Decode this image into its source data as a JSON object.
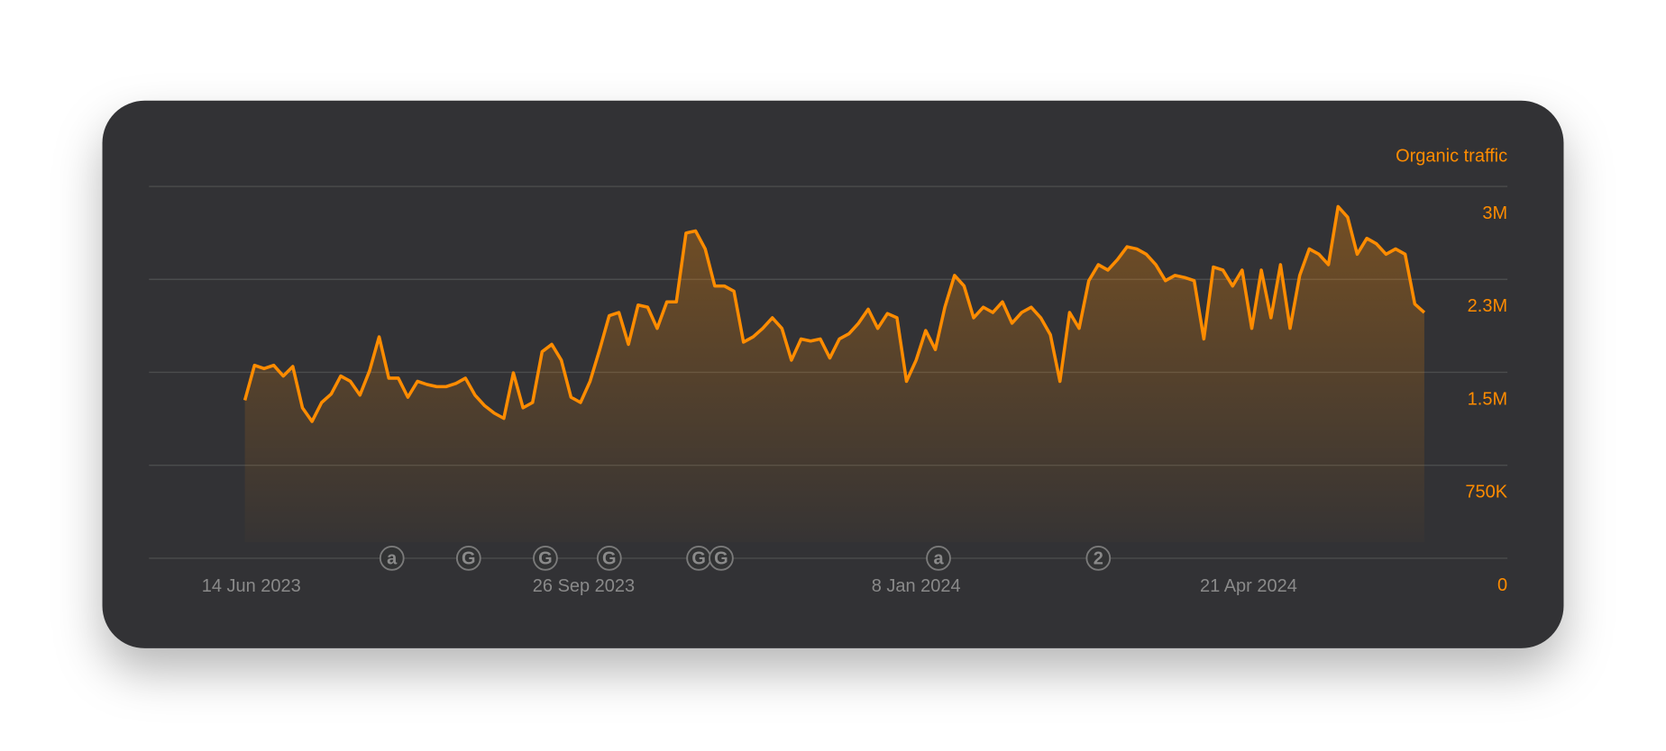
{
  "chart_data": {
    "type": "area",
    "series": [
      {
        "name": "Organic traffic",
        "color": "#ff8c00",
        "values": [
          1274000,
          1556000,
          1530000,
          1556000,
          1470000,
          1547000,
          1214000,
          1103000,
          1256000,
          1325000,
          1470000,
          1427000,
          1316000,
          1513000,
          1786000,
          1453000,
          1453000,
          1299000,
          1427000,
          1402000,
          1385000,
          1385000,
          1410000,
          1453000,
          1316000,
          1231000,
          1171000,
          1128000,
          1496000,
          1214000,
          1256000,
          1667000,
          1726000,
          1598000,
          1299000,
          1256000,
          1427000,
          1684000,
          1957000,
          1983000,
          1726000,
          2043000,
          2026000,
          1855000,
          2068000,
          2068000,
          2624000,
          2641000,
          2496000,
          2197000,
          2197000,
          2154000,
          1744000,
          1786000,
          1855000,
          1940000,
          1855000,
          1598000,
          1769000,
          1752000,
          1769000,
          1615000,
          1769000,
          1812000,
          1897000,
          2009000,
          1855000,
          1974000,
          1940000,
          1427000,
          1598000,
          1838000,
          1684000,
          2026000,
          2282000,
          2197000,
          1940000,
          2026000,
          1983000,
          2068000,
          1897000,
          1983000,
          2026000,
          1940000,
          1803000,
          1427000,
          1983000,
          1855000,
          2239000,
          2368000,
          2325000,
          2410000,
          2513000,
          2496000,
          2453000,
          2368000,
          2239000,
          2282000,
          2265000,
          2239000,
          1769000,
          2350000,
          2325000,
          2197000,
          2325000,
          1855000,
          2325000,
          1940000,
          2368000,
          1855000,
          2282000,
          2496000,
          2453000,
          2368000,
          2838000,
          2752000,
          2453000,
          2581000,
          2538000,
          2453000,
          2496000,
          2453000,
          2051000,
          1983000
        ]
      }
    ],
    "x": [
      "2023-06-12",
      "2023-06-15",
      "2023-06-18",
      "2023-06-21",
      "2023-06-24",
      "2023-06-27",
      "2023-06-30",
      "2023-07-03",
      "2023-07-06",
      "2023-07-09",
      "2023-07-12",
      "2023-07-15",
      "2023-07-18",
      "2023-07-21",
      "2023-07-24",
      "2023-07-27",
      "2023-07-30",
      "2023-08-02",
      "2023-08-05",
      "2023-08-08",
      "2023-08-11",
      "2023-08-14",
      "2023-08-17",
      "2023-08-20",
      "2023-08-23",
      "2023-08-26",
      "2023-08-29",
      "2023-09-01",
      "2023-09-04",
      "2023-09-07",
      "2023-09-10",
      "2023-09-13",
      "2023-09-16",
      "2023-09-19",
      "2023-09-22",
      "2023-09-25",
      "2023-09-28",
      "2023-10-01",
      "2023-10-04",
      "2023-10-07",
      "2023-10-10",
      "2023-10-13",
      "2023-10-16",
      "2023-10-19",
      "2023-10-22",
      "2023-10-25",
      "2023-10-28",
      "2023-10-31",
      "2023-11-03",
      "2023-11-06",
      "2023-11-09",
      "2023-11-12",
      "2023-11-15",
      "2023-11-18",
      "2023-11-21",
      "2023-11-24",
      "2023-11-27",
      "2023-11-30",
      "2023-12-03",
      "2023-12-06",
      "2023-12-09",
      "2023-12-12",
      "2023-12-15",
      "2023-12-18",
      "2023-12-21",
      "2023-12-24",
      "2023-12-27",
      "2023-12-30",
      "2024-01-02",
      "2024-01-05",
      "2024-01-08",
      "2024-01-11",
      "2024-01-14",
      "2024-01-17",
      "2024-01-20",
      "2024-01-23",
      "2024-01-26",
      "2024-01-29",
      "2024-02-01",
      "2024-02-04",
      "2024-02-07",
      "2024-02-10",
      "2024-02-13",
      "2024-02-16",
      "2024-02-19",
      "2024-02-22",
      "2024-02-25",
      "2024-02-28",
      "2024-03-02",
      "2024-03-05",
      "2024-03-08",
      "2024-03-11",
      "2024-03-14",
      "2024-03-17",
      "2024-03-20",
      "2024-03-23",
      "2024-03-26",
      "2024-03-29",
      "2024-04-01",
      "2024-04-04",
      "2024-04-07",
      "2024-04-10",
      "2024-04-13",
      "2024-04-16",
      "2024-04-19",
      "2024-04-22",
      "2024-04-25",
      "2024-04-28",
      "2024-05-01",
      "2024-05-04",
      "2024-05-07",
      "2024-05-10",
      "2024-05-13",
      "2024-05-16",
      "2024-05-19",
      "2024-05-22",
      "2024-05-25",
      "2024-05-28",
      "2024-05-31",
      "2024-06-03",
      "2024-06-06",
      "2024-06-09",
      "2024-06-12",
      "2024-06-15"
    ],
    "xlim": [
      "2023-05-13",
      "2024-07-11"
    ],
    "xticks": [
      {
        "value": "2023-06-14",
        "label": "14 Jun 2023"
      },
      {
        "value": "2023-09-26",
        "label": "26 Sep 2023"
      },
      {
        "value": "2024-01-08",
        "label": "8 Jan 2024"
      },
      {
        "value": "2024-04-21",
        "label": "21 Apr 2024"
      }
    ],
    "ylim": [
      0,
      3000000
    ],
    "yticks": [
      0,
      {
        "value": 750000,
        "label": "750K"
      },
      {
        "value": 1500000,
        "label": "1.5M"
      },
      {
        "value": 2250000,
        "label": "2.3M"
      },
      {
        "value": 3000000,
        "label": "3M"
      }
    ],
    "grid": true,
    "annotations": [
      {
        "x": "2023-07-28",
        "label": "a"
      },
      {
        "x": "2023-08-21",
        "label": "G"
      },
      {
        "x": "2023-09-14",
        "label": "G"
      },
      {
        "x": "2023-10-04",
        "label": "G"
      },
      {
        "x": "2023-11-01",
        "label": "G"
      },
      {
        "x": "2023-11-08",
        "label": "G"
      },
      {
        "x": "2024-01-15",
        "label": "a"
      },
      {
        "x": "2024-03-05",
        "label": "2"
      }
    ]
  }
}
